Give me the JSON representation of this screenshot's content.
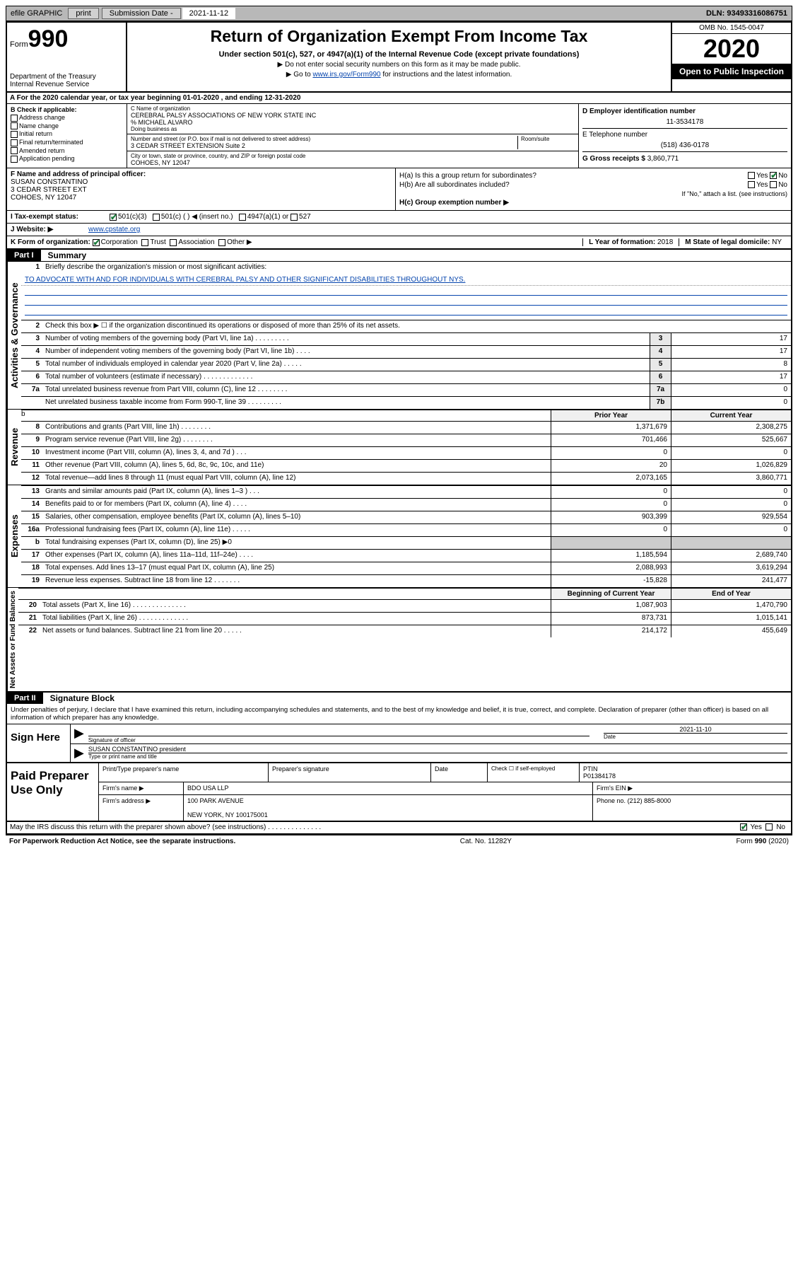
{
  "topbar": {
    "efile": "efile GRAPHIC",
    "print": "print",
    "subm_lbl": "Submission Date -",
    "subm_date": "2021-11-12",
    "dln": "DLN: 93493316086751"
  },
  "header": {
    "form_word": "Form",
    "form_num": "990",
    "dept": "Department of the Treasury\nInternal Revenue Service",
    "title": "Return of Organization Exempt From Income Tax",
    "subtitle": "Under section 501(c), 527, or 4947(a)(1) of the Internal Revenue Code (except private foundations)",
    "note1": "▶ Do not enter social security numbers on this form as it may be made public.",
    "note2_pre": "▶ Go to ",
    "note2_link": "www.irs.gov/Form990",
    "note2_post": " for instructions and the latest information.",
    "omb": "OMB No. 1545-0047",
    "year": "2020",
    "open": "Open to Public Inspection"
  },
  "line_a": "A For the 2020 calendar year, or tax year beginning 01-01-2020    , and ending 12-31-2020",
  "col_b": {
    "lbl": "B Check if applicable:",
    "opts": [
      "Address change",
      "Name change",
      "Initial return",
      "Final return/terminated",
      "Amended return",
      "Application pending"
    ]
  },
  "col_c": {
    "name_lbl": "C Name of organization",
    "name": "CEREBRAL PALSY ASSOCIATIONS OF NEW YORK STATE INC",
    "co": "% MICHAEL ALVARO",
    "dba_lbl": "Doing business as",
    "street_lbl": "Number and street (or P.O. box if mail is not delivered to street address)",
    "street": "3 CEDAR STREET EXTENSION Suite 2",
    "room_lbl": "Room/suite",
    "city_lbl": "City or town, state or province, country, and ZIP or foreign postal code",
    "city": "COHOES, NY  12047"
  },
  "col_d": {
    "d_lbl": "D Employer identification number",
    "ein": "11-3534178",
    "e_lbl": "E Telephone number",
    "phone": "(518) 436-0178",
    "g_lbl": "G Gross receipts $",
    "g_val": "3,860,771"
  },
  "row_fh": {
    "f_lbl": "F Name and address of principal officer:",
    "f_name": "SUSAN CONSTANTINO",
    "f_addr1": "3 CEDAR STREET EXT",
    "f_addr2": "COHOES, NY  12047",
    "ha": "H(a)  Is this a group return for subordinates?",
    "hb": "H(b)  Are all subordinates included?",
    "hb_note": "If \"No,\" attach a list. (see instructions)",
    "hc": "H(c)  Group exemption number ▶",
    "yes": "Yes",
    "no": "No"
  },
  "tax_row": {
    "i_lbl": "I   Tax-exempt status:",
    "c1": "501(c)(3)",
    "c2": "501(c) (  ) ◀ (insert no.)",
    "c3": "4947(a)(1) or",
    "c4": "527"
  },
  "j_row": {
    "lbl": "J   Website: ▶",
    "val": "www.cpstate.org"
  },
  "k_row": {
    "lbl": "K Form of organization:",
    "corp": "Corporation",
    "trust": "Trust",
    "assoc": "Association",
    "other": "Other ▶",
    "l_lbl": "L Year of formation:",
    "l_val": "2018",
    "m_lbl": "M State of legal domicile:",
    "m_val": "NY"
  },
  "part1": {
    "num": "Part I",
    "title": "Summary"
  },
  "summary": {
    "q1": "Briefly describe the organization's mission or most significant activities:",
    "mission": "TO ADVOCATE WITH AND FOR INDIVIDUALS WITH CEREBRAL PALSY AND OTHER SIGNIFICANT DISABILITIES THROUGHOUT NYS.",
    "q2": "Check this box ▶ ☐  if the organization discontinued its operations or disposed of more than 25% of its net assets.",
    "rows_gov": [
      {
        "n": "3",
        "d": "Number of voting members of the governing body (Part VI, line 1a)  .   .   .   .   .   .   .   .   .",
        "b": "3",
        "v": "17"
      },
      {
        "n": "4",
        "d": "Number of independent voting members of the governing body (Part VI, line 1b)  .   .   .   .",
        "b": "4",
        "v": "17"
      },
      {
        "n": "5",
        "d": "Total number of individuals employed in calendar year 2020 (Part V, line 2a)  .   .   .   .   .",
        "b": "5",
        "v": "8"
      },
      {
        "n": "6",
        "d": "Total number of volunteers (estimate if necessary)  .   .   .   .   .   .   .   .   .   .   .   .   .",
        "b": "6",
        "v": "17"
      },
      {
        "n": "7a",
        "d": "Total unrelated business revenue from Part VIII, column (C), line 12  .   .   .   .   .   .   .   .",
        "b": "7a",
        "v": "0"
      },
      {
        "n": "",
        "d": "Net unrelated business taxable income from Form 990-T, line 39  .   .   .   .   .   .   .   .   .",
        "b": "7b",
        "v": "0"
      }
    ],
    "col_hdr1": "Prior Year",
    "col_hdr2": "Current Year",
    "rows_rev": [
      {
        "n": "8",
        "d": "Contributions and grants (Part VIII, line 1h)  .   .   .   .   .   .   .   .",
        "p": "1,371,679",
        "c": "2,308,275"
      },
      {
        "n": "9",
        "d": "Program service revenue (Part VIII, line 2g)  .   .   .   .   .   .   .   .",
        "p": "701,466",
        "c": "525,667"
      },
      {
        "n": "10",
        "d": "Investment income (Part VIII, column (A), lines 3, 4, and 7d )  .   .   .",
        "p": "0",
        "c": "0"
      },
      {
        "n": "11",
        "d": "Other revenue (Part VIII, column (A), lines 5, 6d, 8c, 9c, 10c, and 11e)",
        "p": "20",
        "c": "1,026,829"
      },
      {
        "n": "12",
        "d": "Total revenue—add lines 8 through 11 (must equal Part VIII, column (A), line 12)",
        "p": "2,073,165",
        "c": "3,860,771"
      }
    ],
    "rows_exp": [
      {
        "n": "13",
        "d": "Grants and similar amounts paid (Part IX, column (A), lines 1–3 )  .   .   .",
        "p": "0",
        "c": "0"
      },
      {
        "n": "14",
        "d": "Benefits paid to or for members (Part IX, column (A), line 4)  .   .   .   .",
        "p": "0",
        "c": "0"
      },
      {
        "n": "15",
        "d": "Salaries, other compensation, employee benefits (Part IX, column (A), lines 5–10)",
        "p": "903,399",
        "c": "929,554"
      },
      {
        "n": "16a",
        "d": "Professional fundraising fees (Part IX, column (A), line 11e)  .   .   .   .   .",
        "p": "0",
        "c": "0"
      },
      {
        "n": "b",
        "d": "Total fundraising expenses (Part IX, column (D), line 25) ▶0",
        "p": "",
        "c": "",
        "grey": true
      },
      {
        "n": "17",
        "d": "Other expenses (Part IX, column (A), lines 11a–11d, 11f–24e)  .   .   .   .",
        "p": "1,185,594",
        "c": "2,689,740"
      },
      {
        "n": "18",
        "d": "Total expenses. Add lines 13–17 (must equal Part IX, column (A), line 25)",
        "p": "2,088,993",
        "c": "3,619,294"
      },
      {
        "n": "19",
        "d": "Revenue less expenses. Subtract line 18 from line 12  .   .   .   .   .   .   .",
        "p": "-15,828",
        "c": "241,477"
      }
    ],
    "col_hdr3": "Beginning of Current Year",
    "col_hdr4": "End of Year",
    "rows_net": [
      {
        "n": "20",
        "d": "Total assets (Part X, line 16)  .   .   .   .   .   .   .   .   .   .   .   .   .   .",
        "p": "1,087,903",
        "c": "1,470,790"
      },
      {
        "n": "21",
        "d": "Total liabilities (Part X, line 26)  .   .   .   .   .   .   .   .   .   .   .   .   .",
        "p": "873,731",
        "c": "1,015,141"
      },
      {
        "n": "22",
        "d": "Net assets or fund balances. Subtract line 21 from line 20  .   .   .   .   .",
        "p": "214,172",
        "c": "455,649"
      }
    ],
    "vert_gov": "Activities & Governance",
    "vert_rev": "Revenue",
    "vert_exp": "Expenses",
    "vert_net": "Net Assets or Fund Balances"
  },
  "part2": {
    "num": "Part II",
    "title": "Signature Block"
  },
  "sig": {
    "decl": "Under penalties of perjury, I declare that I have examined this return, including accompanying schedules and statements, and to the best of my knowledge and belief, it is true, correct, and complete. Declaration of preparer (other than officer) is based on all information of which preparer has any knowledge.",
    "sign_here": "Sign Here",
    "sig_of": "Signature of officer",
    "date_lbl": "Date",
    "date_val": "2021-11-10",
    "name": "SUSAN CONSTANTINO president",
    "type_lbl": "Type or print name and title"
  },
  "prep": {
    "title": "Paid Preparer Use Only",
    "h1": "Print/Type preparer's name",
    "h2": "Preparer's signature",
    "h3": "Date",
    "h4_a": "Check ☐ if self-employed",
    "h5": "PTIN",
    "ptin": "P01384178",
    "firm_lbl": "Firm's name    ▶",
    "firm": "BDO USA LLP",
    "ein_lbl": "Firm's EIN ▶",
    "addr_lbl": "Firm's address ▶",
    "addr1": "100 PARK AVENUE",
    "addr2": "NEW YORK, NY  100175001",
    "phone_lbl": "Phone no.",
    "phone": "(212) 885-8000",
    "discuss": "May the IRS discuss this return with the preparer shown above? (see instructions)   .   .   .   .   .   .   .   .   .   .   .   .   .   .",
    "yes": "Yes",
    "no": "No"
  },
  "footer": {
    "left": "For Paperwork Reduction Act Notice, see the separate instructions.",
    "mid": "Cat. No. 11282Y",
    "right": "Form 990 (2020)"
  }
}
